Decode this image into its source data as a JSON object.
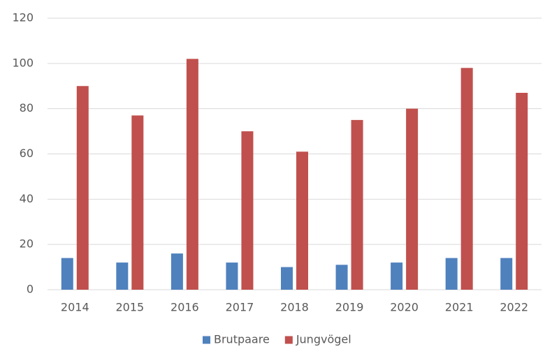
{
  "chart_data": {
    "type": "bar",
    "categories": [
      "2014",
      "2015",
      "2016",
      "2017",
      "2018",
      "2019",
      "2020",
      "2021",
      "2022"
    ],
    "series": [
      {
        "name": "Brutpaare",
        "color": "#4f81bd",
        "values": [
          14,
          12,
          16,
          12,
          10,
          11,
          12,
          14,
          14
        ]
      },
      {
        "name": "Jungvögel",
        "color": "#c0504d",
        "values": [
          90,
          77,
          102,
          70,
          61,
          75,
          80,
          98,
          87
        ]
      }
    ],
    "ylim": [
      0,
      120
    ],
    "yticks": [
      0,
      20,
      40,
      60,
      80,
      100,
      120
    ],
    "grid": true,
    "legend": "bottom"
  }
}
